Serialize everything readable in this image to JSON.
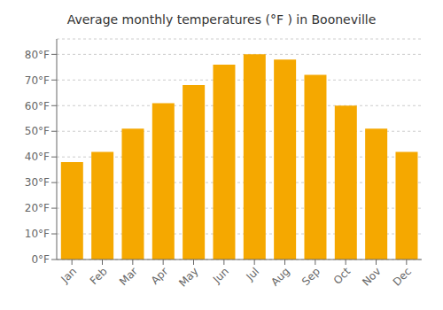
{
  "chart_data": {
    "type": "bar",
    "title": "Average monthly temperatures (°F ) in Booneville",
    "categories": [
      "Jan",
      "Feb",
      "Mar",
      "Apr",
      "May",
      "Jun",
      "Jul",
      "Aug",
      "Sep",
      "Oct",
      "Nov",
      "Dec"
    ],
    "values": [
      38,
      42,
      51,
      61,
      68,
      76,
      80,
      78,
      72,
      60,
      51,
      42
    ],
    "color": "#F5A800",
    "ylim": [
      0,
      86
    ],
    "yticks": [
      {
        "value": 0,
        "label": "0°F"
      },
      {
        "value": 10,
        "label": "10°F"
      },
      {
        "value": 20,
        "label": "20°F"
      },
      {
        "value": 30,
        "label": "30°F"
      },
      {
        "value": 40,
        "label": "40°F"
      },
      {
        "value": 50,
        "label": "50°F"
      },
      {
        "value": 60,
        "label": "60°F"
      },
      {
        "value": 70,
        "label": "70°F"
      },
      {
        "value": 80,
        "label": "80°F"
      }
    ],
    "grid": true
  }
}
